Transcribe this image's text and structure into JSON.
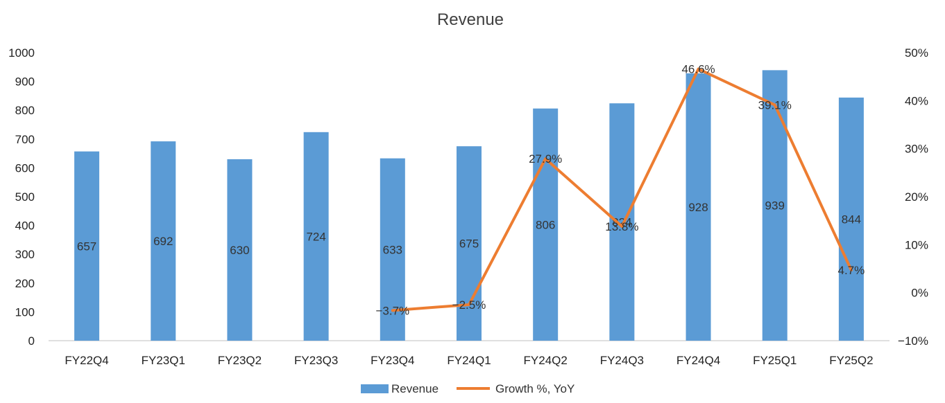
{
  "chart_data": {
    "type": "bar",
    "title": "Revenue",
    "categories": [
      "FY22Q4",
      "FY23Q1",
      "FY23Q2",
      "FY23Q3",
      "FY23Q4",
      "FY24Q1",
      "FY24Q2",
      "FY24Q3",
      "FY24Q4",
      "FY25Q1",
      "FY25Q2"
    ],
    "series": [
      {
        "name": "Revenue",
        "type": "bar",
        "axis": "left",
        "color": "#5b9bd5",
        "values": [
          657,
          692,
          630,
          724,
          633,
          675,
          806,
          824,
          928,
          939,
          844
        ],
        "labels": [
          "657",
          "692",
          "630",
          "724",
          "633",
          "675",
          "806",
          "824",
          "928",
          "939",
          "844"
        ]
      },
      {
        "name": "Growth %, YoY",
        "type": "line",
        "axis": "right",
        "color": "#ed7d31",
        "values": [
          null,
          null,
          null,
          null,
          -3.7,
          -2.5,
          27.9,
          13.8,
          46.6,
          39.1,
          4.7
        ],
        "labels": [
          null,
          null,
          null,
          null,
          "-3.7%",
          "-2.5%",
          "27.9%",
          "13.8%",
          "46.6%",
          "39.1%",
          "4.7%"
        ]
      }
    ],
    "y_left": {
      "range": [
        0,
        1000
      ],
      "ticks": [
        "0",
        "100",
        "200",
        "300",
        "400",
        "500",
        "600",
        "700",
        "800",
        "900",
        "1000"
      ]
    },
    "y_right": {
      "range": [
        -10,
        50
      ],
      "ticks": [
        "-10%",
        "0%",
        "10%",
        "20%",
        "30%",
        "40%",
        "50%"
      ]
    },
    "grid": false,
    "legend": "bottom"
  }
}
